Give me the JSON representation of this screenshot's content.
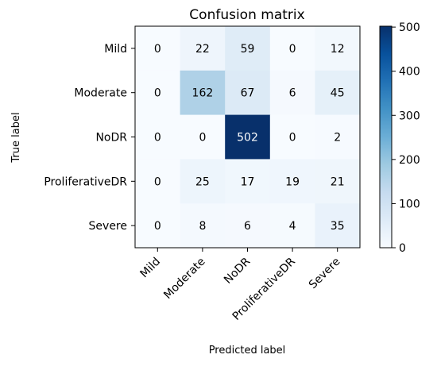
{
  "chart_data": {
    "type": "heatmap",
    "title": "Confusion matrix",
    "xlabel": "Predicted label",
    "ylabel": "True label",
    "x_categories": [
      "Mild",
      "Moderate",
      "NoDR",
      "ProliferativeDR",
      "Severe"
    ],
    "y_categories": [
      "Mild",
      "Moderate",
      "NoDR",
      "ProliferativeDR",
      "Severe"
    ],
    "values": [
      [
        0,
        22,
        59,
        0,
        12
      ],
      [
        0,
        162,
        67,
        6,
        45
      ],
      [
        0,
        0,
        502,
        0,
        2
      ],
      [
        0,
        25,
        17,
        19,
        21
      ],
      [
        0,
        8,
        6,
        4,
        35
      ]
    ],
    "colormap": "Blues",
    "color_low": "#f7fbff",
    "color_high": "#08306b",
    "text_color_dark": "#000000",
    "text_color_light": "#ffffff",
    "colorbar": {
      "min": 0,
      "max": 502,
      "ticks": [
        0,
        100,
        200,
        300,
        400,
        500
      ]
    }
  }
}
